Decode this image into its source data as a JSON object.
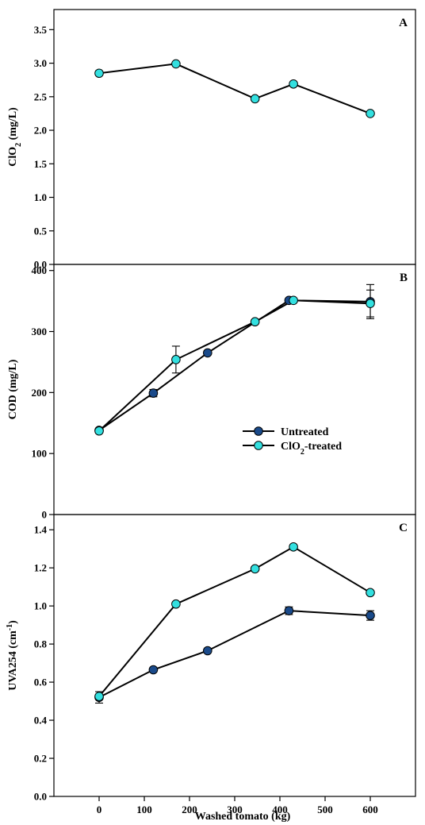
{
  "colors": {
    "untreated": "#1a4a8a",
    "clo2_treated": "#33e0e0",
    "line": "#000000"
  },
  "chart_data": [
    {
      "type": "line",
      "panel_label": "A",
      "ylabel": "ClO2 (mg/L)",
      "ylabel_parts": {
        "base": "ClO",
        "sub": "2",
        "rest": " (mg/L)"
      },
      "ylim": [
        0,
        3.8
      ],
      "yticks": [
        0.0,
        0.5,
        1.0,
        1.5,
        2.0,
        2.5,
        3.0,
        3.5
      ],
      "ytick_labels": [
        "0.0",
        "0.5",
        "1.0",
        "1.5",
        "2.0",
        "2.5",
        "3.0",
        "3.5"
      ],
      "xlim": [
        -100,
        700
      ],
      "grid": false,
      "series": [
        {
          "key": "clo2_treated",
          "x": [
            0,
            170,
            345,
            430,
            600
          ],
          "y": [
            2.85,
            2.99,
            2.47,
            2.69,
            2.25
          ],
          "err": [
            0,
            0,
            0,
            0,
            0
          ]
        }
      ]
    },
    {
      "type": "line",
      "panel_label": "B",
      "ylabel": "COD (mg/L)",
      "ylim": [
        0,
        410
      ],
      "yticks": [
        0,
        100,
        200,
        300,
        400
      ],
      "ytick_labels": [
        "0",
        "100",
        "200",
        "300",
        "400"
      ],
      "xlim": [
        -100,
        700
      ],
      "grid": false,
      "legend": {
        "position": "center-right",
        "entries": [
          {
            "key": "untreated",
            "label": "Untreated"
          },
          {
            "key": "clo2_treated",
            "label_parts": {
              "base": "ClO",
              "sub": "2",
              "rest": "-treated"
            },
            "label": "ClO2-treated"
          }
        ]
      },
      "series": [
        {
          "key": "untreated",
          "x": [
            0,
            120,
            240,
            420,
            600
          ],
          "y": [
            138,
            199,
            265,
            351,
            349
          ],
          "err": [
            4,
            6,
            5,
            5,
            28
          ]
        },
        {
          "key": "clo2_treated",
          "x": [
            0,
            170,
            345,
            430,
            600
          ],
          "y": [
            137,
            254,
            316,
            351,
            346
          ],
          "err": [
            3,
            22,
            4,
            4,
            22
          ]
        }
      ]
    },
    {
      "type": "line",
      "panel_label": "C",
      "ylabel": "UVA254 (cm-1)",
      "ylabel_parts": {
        "base": "UVA254 (cm",
        "sup": "-1",
        "rest": ")"
      },
      "ylim": [
        0,
        1.48
      ],
      "yticks": [
        0.0,
        0.2,
        0.4,
        0.6,
        0.8,
        1.0,
        1.2,
        1.4
      ],
      "ytick_labels": [
        "0.0",
        "0.2",
        "0.4",
        "0.6",
        "0.8",
        "1.0",
        "1.2",
        "1.4"
      ],
      "xlim": [
        -100,
        700
      ],
      "xticks": [
        0,
        100,
        200,
        300,
        400,
        500,
        600
      ],
      "xtick_labels": [
        "0",
        "100",
        "200",
        "300",
        "400",
        "500",
        "600"
      ],
      "xlabel": "Washed tomato (kg)",
      "grid": false,
      "series": [
        {
          "key": "untreated",
          "x": [
            0,
            120,
            240,
            420,
            600
          ],
          "y": [
            0.52,
            0.665,
            0.765,
            0.975,
            0.95
          ],
          "err": [
            0.03,
            0.01,
            0.01,
            0.02,
            0.025
          ]
        },
        {
          "key": "clo2_treated",
          "x": [
            0,
            170,
            345,
            430,
            600
          ],
          "y": [
            0.525,
            1.01,
            1.195,
            1.31,
            1.07
          ],
          "err": [
            0.015,
            0.01,
            0.01,
            0.01,
            0.01
          ]
        }
      ]
    }
  ]
}
